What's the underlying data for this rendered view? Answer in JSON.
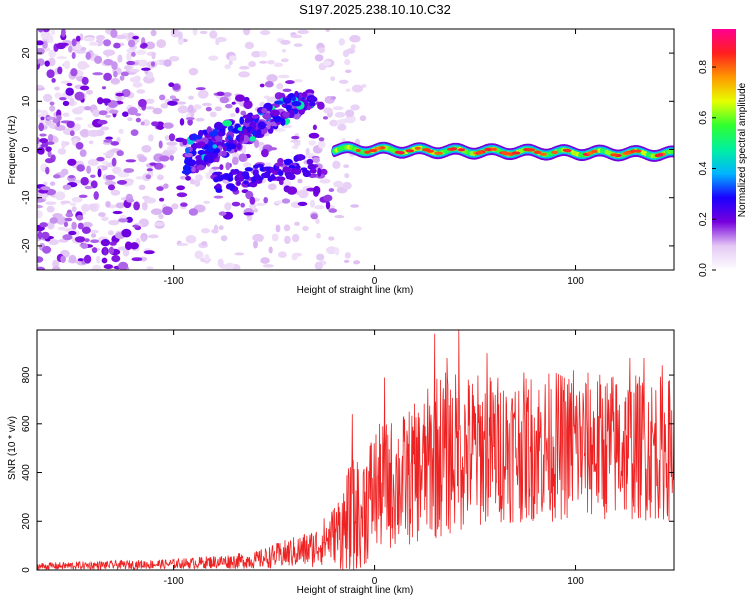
{
  "title": "S197.2025.238.10.10.C32",
  "chart_data": [
    {
      "type": "heatmap",
      "xlabel": "Height of straight line (km)",
      "ylabel": "Frequency (Hz)",
      "xlim": [
        -168,
        149
      ],
      "ylim": [
        -25,
        25
      ],
      "xticks": [
        -100,
        0,
        100
      ],
      "xtick_labels": [
        "-100",
        "0",
        "100"
      ],
      "yticks": [
        -20,
        -10,
        0,
        10,
        20
      ],
      "ytick_labels": [
        "-20",
        "-10",
        "0",
        "10",
        "20"
      ],
      "colorbar": {
        "label": "Normalized spectral amplitude",
        "range": [
          0,
          0.95
        ],
        "ticks": [
          0.0,
          0.2,
          0.4,
          0.6,
          0.8
        ],
        "tick_labels": [
          "0.0",
          "0.2",
          "0.4",
          "0.6",
          "0.8"
        ],
        "colors": [
          "#ffffff",
          "#e4c8f4",
          "#7700dd",
          "#1a00ff",
          "#00b4ff",
          "#00f0a0",
          "#30ff30",
          "#e6ff00",
          "#ff9800",
          "#ff1e1e",
          "#ff0090"
        ]
      },
      "features": {
        "noise_region_x": [
          -168,
          -20
        ],
        "chirp_x": [
          -95,
          -30
        ],
        "chirp_y_start": -2,
        "chirp_y_end": 11,
        "signal_band_x": [
          -20,
          149
        ],
        "signal_band_y": [
          -1.5,
          0.5
        ]
      }
    },
    {
      "type": "line",
      "xlabel": "Height of straight line (km)",
      "ylabel": "SNR (10 * v/v)",
      "xlim": [
        -168,
        149
      ],
      "ylim": [
        0,
        985
      ],
      "xticks": [
        -100,
        0,
        100
      ],
      "xtick_labels": [
        "-100",
        "0",
        "100"
      ],
      "yticks": [
        0,
        200,
        400,
        600,
        800
      ],
      "ytick_labels": [
        "0",
        "200",
        "400",
        "600",
        "800"
      ],
      "color": "#ee2222",
      "envelope": [
        {
          "x": -168,
          "base": 15,
          "amp": 15
        },
        {
          "x": -100,
          "base": 25,
          "amp": 20
        },
        {
          "x": -60,
          "base": 40,
          "amp": 35
        },
        {
          "x": -30,
          "base": 90,
          "amp": 80
        },
        {
          "x": -20,
          "base": 150,
          "amp": 120
        },
        {
          "x": -12,
          "base": 180,
          "amp": 260
        },
        {
          "x": 0,
          "base": 330,
          "amp": 260
        },
        {
          "x": 15,
          "base": 370,
          "amp": 280
        },
        {
          "x": 25,
          "base": 420,
          "amp": 300
        },
        {
          "x": 30,
          "base": 470,
          "amp": 350
        },
        {
          "x": 60,
          "base": 500,
          "amp": 310
        },
        {
          "x": 100,
          "base": 510,
          "amp": 310
        },
        {
          "x": 149,
          "base": 500,
          "amp": 300
        }
      ],
      "peaks": [
        {
          "x": 30,
          "y": 970
        },
        {
          "x": 42,
          "y": 985
        },
        {
          "x": 36,
          "y": 870
        },
        {
          "x": 56,
          "y": 890
        },
        {
          "x": 127,
          "y": 870
        },
        {
          "x": 134,
          "y": 870
        },
        {
          "x": 143,
          "y": 840
        },
        {
          "x": -11,
          "y": 640
        },
        {
          "x": 5,
          "y": 790
        },
        {
          "x": 118,
          "y": 790
        },
        {
          "x": 99,
          "y": 820
        }
      ]
    }
  ]
}
